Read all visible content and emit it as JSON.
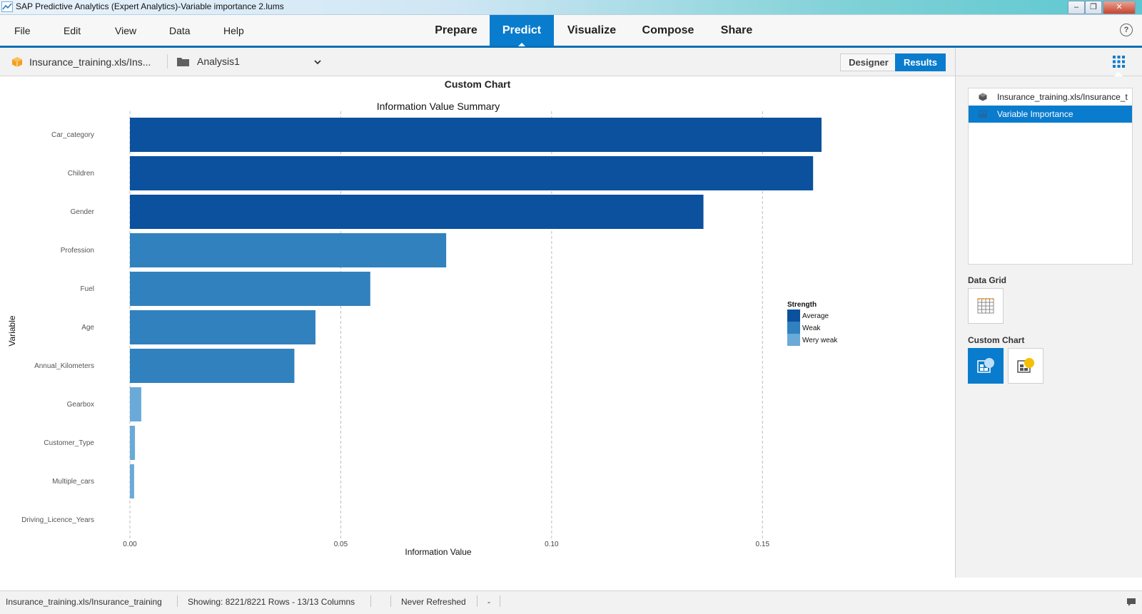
{
  "window": {
    "title": "SAP Predictive Analytics (Expert Analytics)-Variable importance 2.lums"
  },
  "menu": {
    "items": [
      "File",
      "Edit",
      "View",
      "Data",
      "Help"
    ],
    "tabs": [
      "Prepare",
      "Predict",
      "Visualize",
      "Compose",
      "Share"
    ],
    "active_tab": "Predict",
    "help_glyph": "?"
  },
  "toolbar": {
    "dataset": "Insurance_training.xls/Ins...",
    "analysis": "Analysis1",
    "designer_label": "Designer",
    "results_label": "Results"
  },
  "main": {
    "panel_title": "Custom Chart"
  },
  "chart_data": {
    "type": "bar",
    "orientation": "horizontal",
    "title": "Information Value Summary",
    "xlabel": "Information Value",
    "ylabel": "Variable",
    "categories": [
      "Car_category",
      "Children",
      "Gender",
      "Profession",
      "Fuel",
      "Age",
      "Annual_Kilometers",
      "Gearbox",
      "Customer_Type",
      "Multiple_cars",
      "Driving_Licence_Years"
    ],
    "values": [
      0.164,
      0.162,
      0.136,
      0.075,
      0.057,
      0.044,
      0.039,
      0.0027,
      0.0012,
      0.001,
      0.0
    ],
    "strength": [
      "Average",
      "Average",
      "Average",
      "Weak",
      "Weak",
      "Weak",
      "Weak",
      "Wery weak",
      "Wery weak",
      "Wery weak",
      "Wery weak"
    ],
    "xlim": [
      0,
      0.175
    ],
    "xticks": [
      0.0,
      0.05,
      0.1,
      0.15
    ],
    "xtick_labels": [
      "0.00",
      "0.05",
      "0.10",
      "0.15"
    ],
    "grid": "vertical dashed",
    "legend": {
      "title": "Strength",
      "placement": "right",
      "entries": [
        {
          "label": "Average",
          "color": "#0b519e"
        },
        {
          "label": "Weak",
          "color": "#3181bf"
        },
        {
          "label": "Wery weak",
          "color": "#6aaad8"
        }
      ]
    }
  },
  "right_panel": {
    "items": [
      "Insurance_training.xls/Insurance_t",
      "Variable Importance"
    ],
    "selected": "Variable Importance",
    "data_grid_title": "Data Grid",
    "custom_chart_title": "Custom Chart"
  },
  "status": {
    "source": "Insurance_training.xls/Insurance_training",
    "showing": "Showing: 8221/8221 Rows - 13/13 Columns",
    "refresh": "Never Refreshed",
    "dash": "-"
  },
  "colors": {
    "accent": "#0a7ccd",
    "average": "#0b519e",
    "weak": "#3181bf",
    "very_weak": "#6aaad8"
  }
}
